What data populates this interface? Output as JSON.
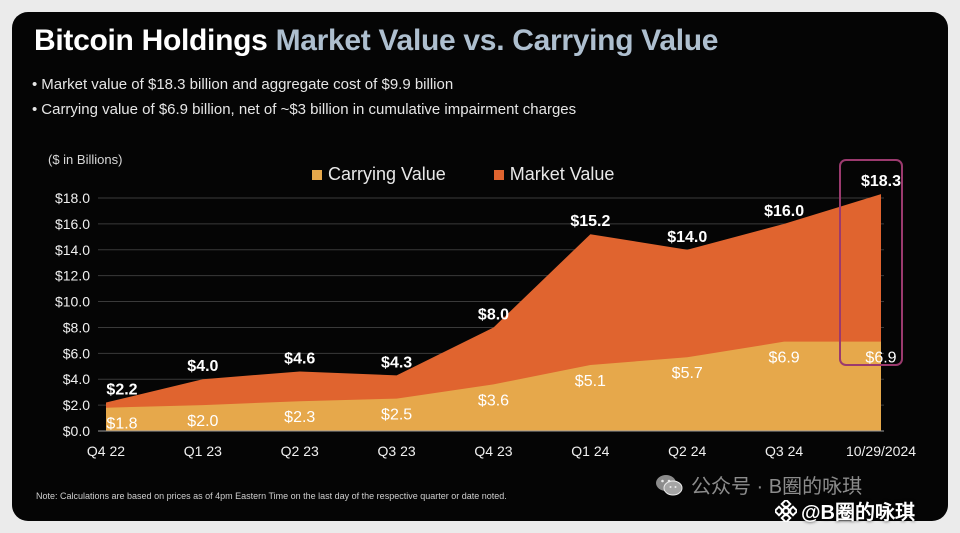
{
  "slide": {
    "title_part1": "Bitcoin Holdings",
    "title_part2": "Market Value  vs. Carrying Value",
    "bullets": [
      "Market value of $18.3 billion and aggregate cost of $9.9 billion",
      "Carrying value of $6.9 billion, net of ~$3 billion in cumulative impairment charges"
    ],
    "unit_label": "($ in Billions)",
    "footnote": "Note: Calculations are based on prices as of 4pm Eastern Time on the last day of the respective quarter or date noted."
  },
  "colors": {
    "carrying": "#e6a84b",
    "market": "#e0642f",
    "highlight_box": "#9b3a6e",
    "background": "#050505"
  },
  "watermark": {
    "text": "公众号 · B圈的咏琪",
    "icon": "wechat-icon"
  },
  "overlay_tag": {
    "text": "@B圈的咏琪",
    "icon": "binance-icon"
  },
  "chart_data": {
    "type": "area",
    "categories": [
      "Q4 22",
      "Q1 23",
      "Q2 23",
      "Q3 23",
      "Q4 23",
      "Q1 24",
      "Q2 24",
      "Q3 24",
      "10/29/2024"
    ],
    "series": [
      {
        "name": "Carrying Value",
        "values": [
          1.8,
          2.0,
          2.3,
          2.5,
          3.6,
          5.1,
          5.7,
          6.9,
          6.9
        ],
        "labels": [
          "$1.8",
          "$2.0",
          "$2.3",
          "$2.5",
          "$3.6",
          "$5.1",
          "$5.7",
          "$6.9",
          "$6.9"
        ]
      },
      {
        "name": "Market Value",
        "values": [
          2.2,
          4.0,
          4.6,
          4.3,
          8.0,
          15.2,
          14.0,
          16.0,
          18.3
        ],
        "labels": [
          "$2.2",
          "$4.0",
          "$4.6",
          "$4.3",
          "$8.0",
          "$15.2",
          "$14.0",
          "$16.0",
          "$18.3"
        ]
      }
    ],
    "yticks": [
      "$0.0",
      "$2.0",
      "$4.0",
      "$6.0",
      "$8.0",
      "$10.0",
      "$12.0",
      "$14.0",
      "$16.0",
      "$18.0"
    ],
    "ylim": [
      0,
      18
    ],
    "grid": true,
    "legend_position": "top-center",
    "highlight": "last-category"
  }
}
